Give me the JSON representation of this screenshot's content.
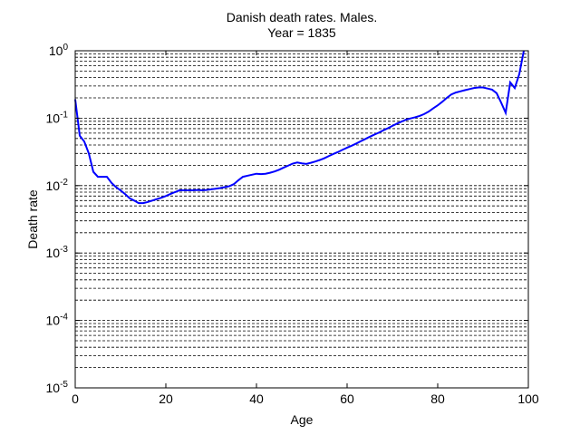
{
  "chart_data": {
    "type": "line",
    "title": "Danish death rates. Males.",
    "subtitle": "Year = 1835",
    "xlabel": "Age",
    "ylabel": "Death rate",
    "xlim": [
      0,
      100
    ],
    "ylim": [
      1e-05,
      1
    ],
    "y_scale": "log",
    "x_ticks": [
      0,
      20,
      40,
      60,
      80,
      100
    ],
    "y_ticks": [
      {
        "value": 1e-05,
        "base": "10",
        "exp": "-5"
      },
      {
        "value": 0.0001,
        "base": "10",
        "exp": "-4"
      },
      {
        "value": 0.001,
        "base": "10",
        "exp": "-3"
      },
      {
        "value": 0.01,
        "base": "10",
        "exp": "-2"
      },
      {
        "value": 0.1,
        "base": "10",
        "exp": "-1"
      },
      {
        "value": 1,
        "base": "10",
        "exp": "0"
      }
    ],
    "grid": "y-minor-dashed",
    "line_color": "#0000ff",
    "series": [
      {
        "x": [
          0,
          1,
          2,
          3,
          4,
          5,
          6,
          7,
          8,
          9,
          10,
          11,
          12,
          13,
          14,
          15,
          16,
          17,
          18,
          19,
          20,
          21,
          22,
          23,
          24,
          25,
          26,
          27,
          28,
          29,
          30,
          31,
          32,
          33,
          34,
          35,
          36,
          37,
          38,
          39,
          40,
          41,
          42,
          43,
          44,
          45,
          46,
          47,
          48,
          49,
          50,
          51,
          52,
          53,
          54,
          55,
          56,
          57,
          58,
          59,
          60,
          61,
          62,
          63,
          64,
          65,
          66,
          67,
          68,
          69,
          70,
          71,
          72,
          73,
          74,
          75,
          76,
          77,
          78,
          79,
          80,
          81,
          82,
          83,
          84,
          85,
          86,
          87,
          88,
          89,
          90,
          91,
          92,
          93,
          94,
          95,
          96,
          97,
          98,
          99
        ],
        "y": [
          0.19,
          0.055,
          0.045,
          0.03,
          0.016,
          0.0135,
          0.0135,
          0.0135,
          0.011,
          0.0095,
          0.0085,
          0.0075,
          0.0065,
          0.006,
          0.0055,
          0.0055,
          0.0057,
          0.006,
          0.0063,
          0.0066,
          0.007,
          0.0075,
          0.008,
          0.0085,
          0.0085,
          0.0085,
          0.0085,
          0.0086,
          0.0085,
          0.0086,
          0.0088,
          0.009,
          0.0092,
          0.0095,
          0.0098,
          0.0105,
          0.012,
          0.0135,
          0.014,
          0.0145,
          0.015,
          0.0148,
          0.015,
          0.0155,
          0.0162,
          0.0172,
          0.0185,
          0.0198,
          0.0212,
          0.022,
          0.0214,
          0.021,
          0.0218,
          0.0228,
          0.024,
          0.0255,
          0.0275,
          0.0295,
          0.0315,
          0.034,
          0.0365,
          0.039,
          0.042,
          0.0455,
          0.049,
          0.053,
          0.057,
          0.061,
          0.066,
          0.071,
          0.077,
          0.083,
          0.089,
          0.095,
          0.099,
          0.103,
          0.108,
          0.115,
          0.125,
          0.14,
          0.155,
          0.175,
          0.2,
          0.225,
          0.24,
          0.25,
          0.26,
          0.27,
          0.28,
          0.285,
          0.285,
          0.275,
          0.265,
          0.235,
          0.17,
          0.12,
          0.34,
          0.28,
          0.45,
          1.0
        ]
      }
    ]
  }
}
